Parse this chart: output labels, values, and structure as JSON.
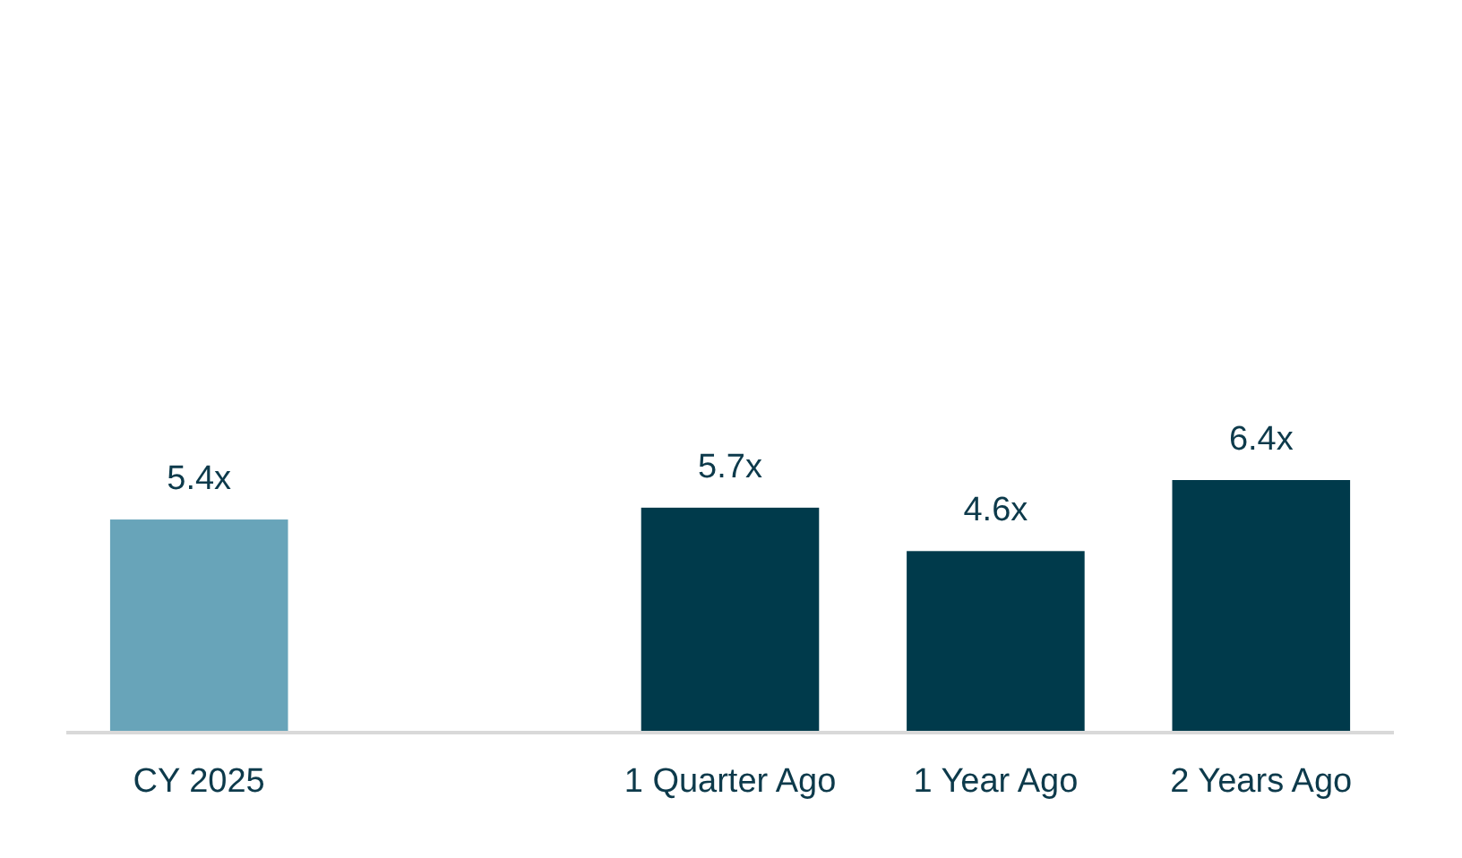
{
  "chart_data": {
    "type": "bar",
    "categories": [
      "CY 2025",
      null,
      "1 Quarter Ago",
      "1 Year Ago",
      "2 Years Ago"
    ],
    "values": [
      5.4,
      null,
      5.7,
      4.6,
      6.4
    ],
    "colors": [
      "#68a4b9",
      null,
      "#003a4b",
      "#003a4b",
      "#003a4b"
    ],
    "value_labels": [
      "5.4x",
      null,
      "5.7x",
      "4.6x",
      "6.4x"
    ]
  }
}
